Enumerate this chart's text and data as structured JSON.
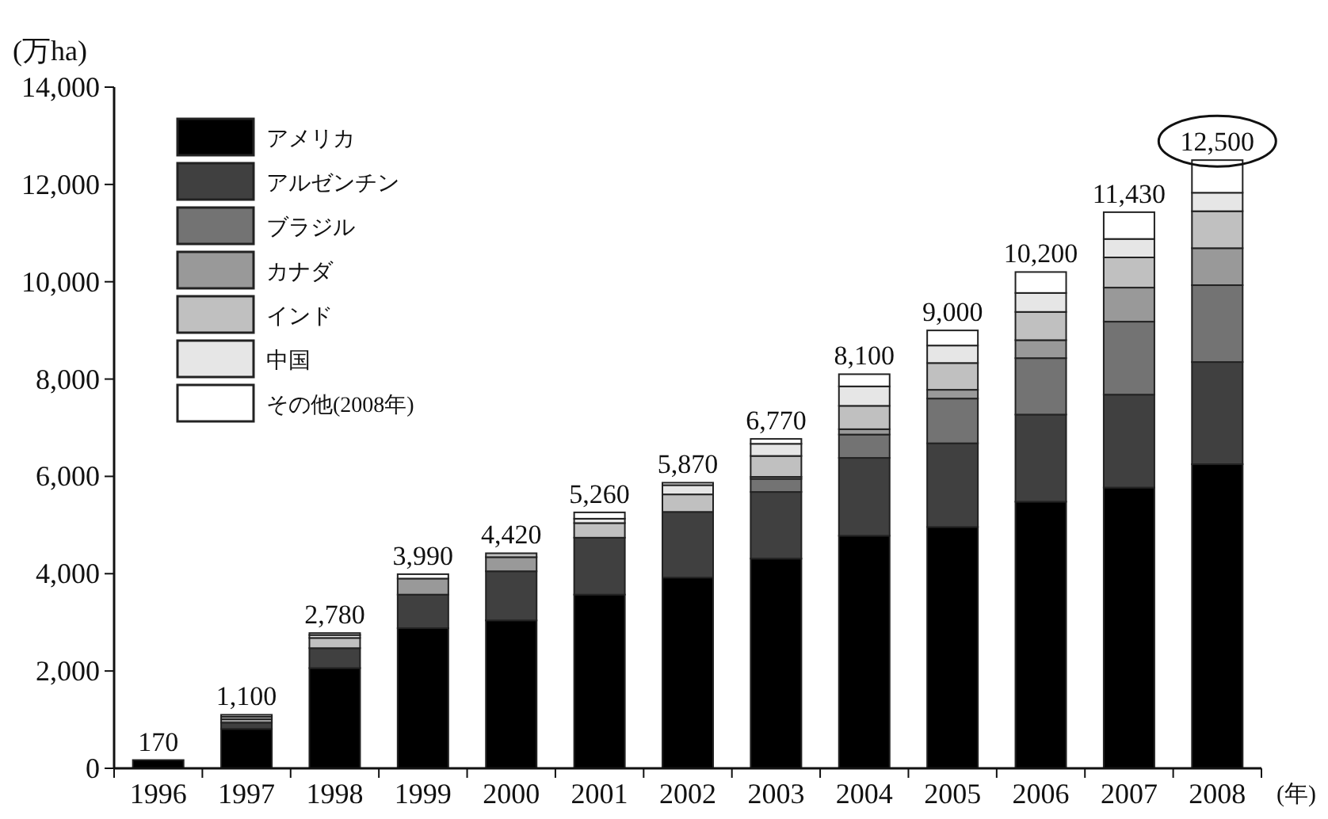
{
  "chart_data": {
    "type": "bar",
    "stacked": true,
    "ylabel": "(万ha)",
    "xlabel": "(年)",
    "categories": [
      "1996",
      "1997",
      "1998",
      "1999",
      "2000",
      "2001",
      "2002",
      "2003",
      "2004",
      "2005",
      "2006",
      "2007",
      "2008"
    ],
    "series": [
      {
        "name": "アメリカ",
        "color": "#000000",
        "values": [
          170,
          810,
          2060,
          2880,
          3040,
          3570,
          3920,
          4310,
          4780,
          4960,
          5480,
          5770,
          6250
        ]
      },
      {
        "name": "アルゼンチン",
        "color": "#404040",
        "values": [
          null,
          130,
          410,
          690,
          1010,
          1170,
          1350,
          1370,
          1600,
          1720,
          1790,
          1910,
          2100
        ]
      },
      {
        "name": "ブラジル",
        "color": "#737373",
        "values": [
          null,
          null,
          null,
          null,
          null,
          null,
          null,
          270,
          480,
          920,
          1160,
          1500,
          1580
        ]
      },
      {
        "name": "カナダ",
        "color": "#999999",
        "values": [
          null,
          70,
          null,
          330,
          290,
          null,
          null,
          40,
          110,
          180,
          370,
          700,
          760
        ]
      },
      {
        "name": "インド",
        "color": "#c0c0c0",
        "values": [
          null,
          50,
          210,
          null,
          80,
          300,
          360,
          430,
          480,
          550,
          580,
          620,
          760
        ]
      },
      {
        "name": "中国",
        "color": "#e6e6e6",
        "values": [
          null,
          null,
          60,
          null,
          null,
          90,
          190,
          250,
          400,
          360,
          390,
          380,
          380
        ]
      },
      {
        "name": "その他(2008年)",
        "color": "#ffffff",
        "values": [
          null,
          40,
          40,
          90,
          null,
          130,
          50,
          100,
          250,
          310,
          430,
          550,
          670
        ]
      }
    ],
    "totals": [
      "170",
      "1,100",
      "2,780",
      "3,990",
      "4,420",
      "5,260",
      "5,870",
      "6,770",
      "8,100",
      "9,000",
      "10,200",
      "11,430",
      "12,500"
    ],
    "ylim": [
      0,
      14000
    ],
    "yticks": [
      {
        "value": 0,
        "label": "0"
      },
      {
        "value": 2000,
        "label": "2,000"
      },
      {
        "value": 4000,
        "label": "4,000"
      },
      {
        "value": 6000,
        "label": "6,000"
      },
      {
        "value": 8000,
        "label": "8,000"
      },
      {
        "value": 10000,
        "label": "10,000"
      },
      {
        "value": 12000,
        "label": "12,000"
      },
      {
        "value": 14000,
        "label": "14,000"
      }
    ],
    "grid": false,
    "legend": "top left"
  }
}
